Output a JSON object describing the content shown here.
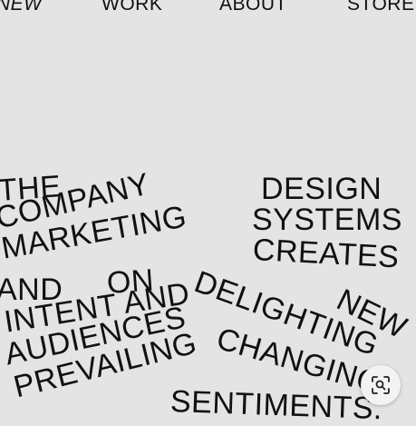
{
  "nav": {
    "items": [
      {
        "label": "NEW"
      },
      {
        "label": "WORK"
      },
      {
        "label": "ABOUT"
      },
      {
        "label": "STORE"
      }
    ]
  },
  "poster": {
    "words": {
      "the": "THE",
      "company": "COMPANY",
      "marketing": "MARKETING",
      "and": "AND",
      "on": "ON",
      "intent_and": "INTENT AND",
      "audiences": "AUDIENCES",
      "prevailing": "PREVAILING",
      "design": "DESIGN",
      "systems": "SYSTEMS",
      "creates": "CREATES",
      "delighting": "DELIGHTING",
      "new": "NEW",
      "changing": "CHANGING",
      "sentiments": "SENTIMENTS."
    }
  },
  "zoom_button": {
    "icon": "zoom-scan-icon"
  },
  "colors": {
    "background": "#e4e4e4",
    "text": "#111111"
  }
}
